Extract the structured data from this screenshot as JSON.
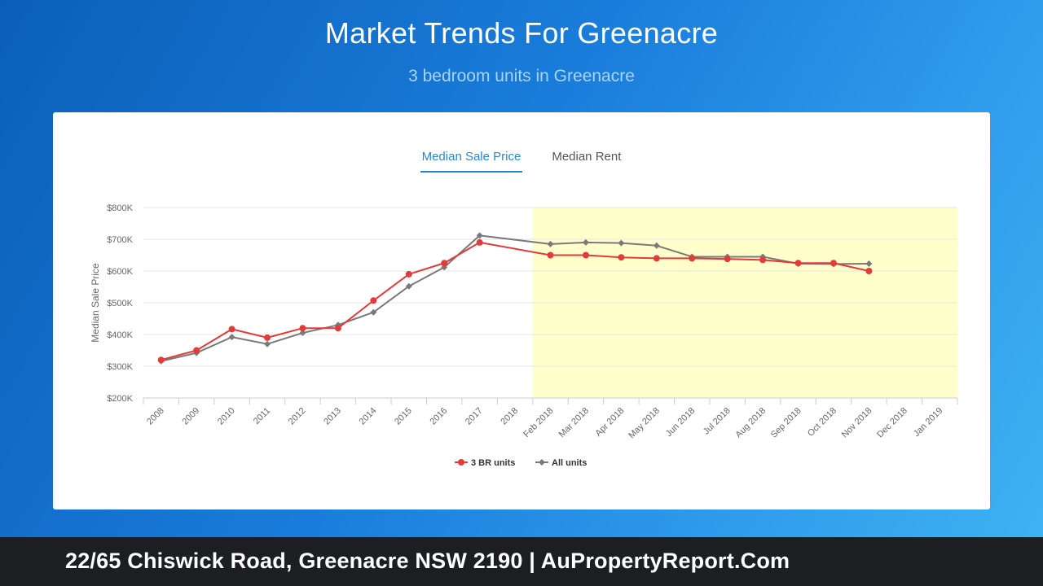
{
  "header": {
    "title": "Market Trends For Greenacre",
    "subtitle": "3 bedroom units in Greenacre"
  },
  "tabs": [
    {
      "label": "Median Sale Price",
      "active": true
    },
    {
      "label": "Median Rent",
      "active": false
    }
  ],
  "chart_data": {
    "type": "line",
    "ylabel": "Median Sale Price",
    "ylim": [
      200000,
      800000
    ],
    "yticks": [
      {
        "value": 200000,
        "label": "$200K"
      },
      {
        "value": 300000,
        "label": "$300K"
      },
      {
        "value": 400000,
        "label": "$400K"
      },
      {
        "value": 500000,
        "label": "$500K"
      },
      {
        "value": 600000,
        "label": "$600K"
      },
      {
        "value": 700000,
        "label": "$700K"
      },
      {
        "value": 800000,
        "label": "$800K"
      }
    ],
    "categories": [
      "2008",
      "2009",
      "2010",
      "2011",
      "2012",
      "2013",
      "2014",
      "2015",
      "2016",
      "2017",
      "2018",
      "Feb 2018",
      "Mar 2018",
      "Apr 2018",
      "May 2018",
      "Jun 2018",
      "Jul 2018",
      "Aug 2018",
      "Sep 2018",
      "Oct 2018",
      "Nov 2018",
      "Dec 2018",
      "Jan 2019"
    ],
    "highlight_range": [
      "Feb 2018",
      "Jan 2019"
    ],
    "highlight_color": "#ffffcc",
    "grid": true,
    "legend_position": "bottom",
    "series": [
      {
        "name": "3 BR units",
        "color": "#e03c3c",
        "marker": "circle",
        "values": [
          320000,
          350000,
          417000,
          390000,
          420000,
          420000,
          507000,
          590000,
          625000,
          690000,
          null,
          650000,
          650000,
          643000,
          640000,
          640000,
          638000,
          635000,
          625000,
          625000,
          600000,
          null,
          null
        ]
      },
      {
        "name": "All units",
        "color": "#7a7a7a",
        "marker": "diamond",
        "values": [
          316000,
          342000,
          392000,
          370000,
          405000,
          430000,
          470000,
          552000,
          612000,
          712000,
          null,
          685000,
          690000,
          688000,
          680000,
          645000,
          645000,
          645000,
          623000,
          622000,
          623000,
          null,
          null
        ]
      }
    ]
  },
  "footer": {
    "text": "22/65 Chiswick Road, Greenacre NSW 2190 | AuPropertyReport.Com"
  }
}
